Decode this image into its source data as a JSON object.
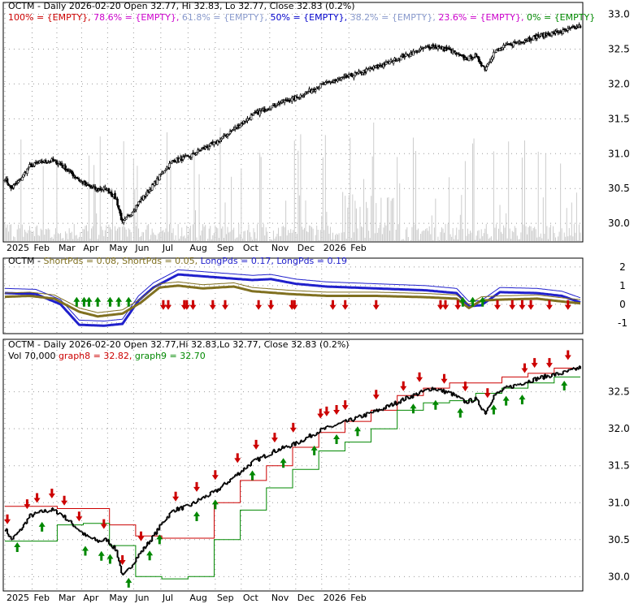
{
  "colors": {
    "up": "#000000",
    "down": "#000000",
    "fib100": "#cc0000",
    "fib786": "#cc00cc",
    "fib618": "#8899cc",
    "fib50": "#0000cc",
    "fib382": "#8899cc",
    "fib236": "#cc00cc",
    "fib0": "#008800",
    "short1": "#807020",
    "short2": "#807020",
    "long1": "#2020cc",
    "long2": "#2020cc",
    "graph8": "#cc0000",
    "graph9": "#008800",
    "arrowUp": "#008800",
    "arrowDown": "#cc0000",
    "volume": "#cccccc",
    "grid": "#999999"
  },
  "chart_data": [
    {
      "type": "candlestick",
      "title": "OCTM - Daily 2026-02-20 Open 32.77, Hi 32.83, Lo 32.77, Close 32.83 (0.2%)",
      "legend": [
        {
          "label": "100% = {EMPTY},",
          "color_key": "fib100"
        },
        {
          "label": "78.6% = {EMPTY},",
          "color_key": "fib786"
        },
        {
          "label": "61.8% = {EMPTY},",
          "color_key": "fib618"
        },
        {
          "label": "50% = {EMPTY},",
          "color_key": "fib50"
        },
        {
          "label": "38.2% = {EMPTY},",
          "color_key": "fib382"
        },
        {
          "label": "23.6% = {EMPTY},",
          "color_key": "fib236"
        },
        {
          "label": "0% = {EMPTY}",
          "color_key": "fib0"
        }
      ],
      "x_labels": [
        "2025",
        "Feb",
        "Mar",
        "Apr",
        "May",
        "Jun",
        "Jul",
        "Aug",
        "Sep",
        "Oct",
        "Nov",
        "Dec",
        "2026",
        "Feb"
      ],
      "y_ticks": [
        "33.0",
        "32.5",
        "32.0",
        "31.5",
        "31.0",
        "30.5",
        "30.0"
      ],
      "ylim": [
        29.85,
        33.1
      ],
      "close_anchors": [
        [
          0,
          30.65
        ],
        [
          5,
          30.5
        ],
        [
          12,
          30.62
        ],
        [
          20,
          30.82
        ],
        [
          30,
          30.88
        ],
        [
          38,
          30.9
        ],
        [
          45,
          30.85
        ],
        [
          55,
          30.7
        ],
        [
          65,
          30.55
        ],
        [
          75,
          30.48
        ],
        [
          82,
          30.5
        ],
        [
          90,
          30.35
        ],
        [
          95,
          30.0
        ],
        [
          100,
          30.1
        ],
        [
          106,
          30.25
        ],
        [
          114,
          30.42
        ],
        [
          120,
          30.55
        ],
        [
          128,
          30.75
        ],
        [
          136,
          30.9
        ],
        [
          148,
          30.95
        ],
        [
          158,
          31.05
        ],
        [
          170,
          31.15
        ],
        [
          185,
          31.35
        ],
        [
          200,
          31.55
        ],
        [
          218,
          31.7
        ],
        [
          235,
          31.8
        ],
        [
          255,
          31.98
        ],
        [
          280,
          32.12
        ],
        [
          305,
          32.27
        ],
        [
          325,
          32.42
        ],
        [
          345,
          32.55
        ],
        [
          360,
          32.48
        ],
        [
          372,
          32.36
        ],
        [
          380,
          32.4
        ],
        [
          388,
          32.22
        ],
        [
          395,
          32.45
        ],
        [
          405,
          32.55
        ],
        [
          418,
          32.62
        ],
        [
          430,
          32.68
        ],
        [
          440,
          32.72
        ],
        [
          450,
          32.75
        ],
        [
          458,
          32.79
        ],
        [
          465,
          32.83
        ]
      ],
      "volume_note": "light gray volume bars",
      "annotation": "candles are plotted by a script from close_anchors"
    },
    {
      "type": "line",
      "title_parts": [
        {
          "text": "OCTM - ",
          "color_key": "up"
        },
        {
          "text": "ShortPds = 0.08,",
          "color_key": "short1"
        },
        {
          "text": "ShortPds = 0.05,",
          "color_key": "short2"
        },
        {
          "text": "LongPds = 0.17,",
          "color_key": "long1"
        },
        {
          "text": "LongPds = 0.19",
          "color_key": "long2"
        }
      ],
      "y_ticks": [
        "2",
        "1",
        "0",
        "-1"
      ],
      "ylim": [
        -1.4,
        2.3
      ],
      "series": [
        {
          "key": "long",
          "anchors": [
            [
              0,
              0.6
            ],
            [
              25,
              0.55
            ],
            [
              45,
              0.0
            ],
            [
              60,
              -1.1
            ],
            [
              80,
              -1.15
            ],
            [
              95,
              -1.05
            ],
            [
              108,
              0.2
            ],
            [
              120,
              0.9
            ],
            [
              140,
              1.6
            ],
            [
              160,
              1.5
            ],
            [
              180,
              1.4
            ],
            [
              200,
              1.3
            ],
            [
              215,
              1.35
            ],
            [
              235,
              1.1
            ],
            [
              260,
              0.95
            ],
            [
              300,
              0.85
            ],
            [
              340,
              0.75
            ],
            [
              365,
              0.6
            ],
            [
              375,
              -0.1
            ],
            [
              385,
              -0.05
            ],
            [
              400,
              0.65
            ],
            [
              430,
              0.6
            ],
            [
              450,
              0.45
            ],
            [
              465,
              0.1
            ]
          ]
        },
        {
          "key": "short",
          "anchors": [
            [
              0,
              0.4
            ],
            [
              20,
              0.45
            ],
            [
              40,
              0.3
            ],
            [
              60,
              -0.4
            ],
            [
              75,
              -0.65
            ],
            [
              95,
              -0.5
            ],
            [
              110,
              0.1
            ],
            [
              125,
              0.9
            ],
            [
              140,
              1.0
            ],
            [
              160,
              0.85
            ],
            [
              185,
              0.95
            ],
            [
              200,
              0.7
            ],
            [
              230,
              0.55
            ],
            [
              260,
              0.45
            ],
            [
              300,
              0.45
            ],
            [
              340,
              0.38
            ],
            [
              365,
              0.3
            ],
            [
              375,
              -0.2
            ],
            [
              385,
              0.2
            ],
            [
              400,
              0.25
            ],
            [
              430,
              0.3
            ],
            [
              450,
              0.15
            ],
            [
              465,
              0.05
            ]
          ]
        }
      ],
      "up_arrow_days": [
        58,
        64,
        68,
        75,
        85,
        92,
        100,
        370,
        378,
        386
      ],
      "down_arrow_days": [
        128,
        132,
        145,
        147,
        152,
        168,
        178,
        205,
        215,
        232,
        234,
        265,
        275,
        300,
        352,
        356,
        366,
        398,
        410,
        418,
        425,
        440,
        455
      ]
    },
    {
      "type": "candlestick",
      "title": "OCTM - Daily 2026-02-20 Open 32.77,Hi 32.83,Lo 32.77, Close 32.83 (0.2%)",
      "subtitle_parts": [
        {
          "text": "Vol 70,000",
          "color_key": "up"
        },
        {
          "text": "graph8 = 32.82,",
          "color_key": "graph8"
        },
        {
          "text": "graph9 = 32.70",
          "color_key": "graph9"
        }
      ],
      "x_labels": [
        "2025",
        "Feb",
        "Mar",
        "Apr",
        "May",
        "Jun",
        "Jul",
        "Aug",
        "Sep",
        "Oct",
        "Nov",
        "Dec",
        "2026",
        "Feb"
      ],
      "y_ticks": [
        "32.5",
        "32.0",
        "31.5",
        "31.0",
        "30.5",
        "30.0"
      ],
      "ylim": [
        29.85,
        33.1
      ],
      "graph8_values": [
        30.95,
        30.95,
        30.92,
        30.92,
        30.7,
        30.55,
        30.52,
        30.52,
        31.0,
        31.3,
        31.5,
        31.75,
        31.95,
        32.1,
        32.25,
        32.45,
        32.55,
        32.62,
        32.62,
        32.7,
        32.75,
        32.82
      ],
      "graph9_values": [
        30.48,
        30.48,
        30.7,
        30.72,
        30.42,
        30.0,
        29.97,
        30.0,
        30.5,
        30.9,
        31.2,
        31.45,
        31.7,
        31.82,
        32.0,
        32.25,
        32.35,
        32.38,
        32.48,
        32.55,
        32.62,
        32.7
      ],
      "up_arrow_days": [
        10,
        30,
        65,
        78,
        85,
        100,
        117,
        125,
        155,
        170,
        200,
        225,
        250,
        268,
        285,
        330,
        348,
        368,
        395,
        405,
        418,
        452
      ],
      "down_arrow_days": [
        2,
        18,
        26,
        38,
        48,
        60,
        80,
        95,
        110,
        138,
        155,
        170,
        188,
        203,
        218,
        233,
        255,
        260,
        268,
        275,
        300,
        322,
        335,
        355,
        372,
        390,
        420,
        428,
        440,
        455
      ]
    }
  ]
}
